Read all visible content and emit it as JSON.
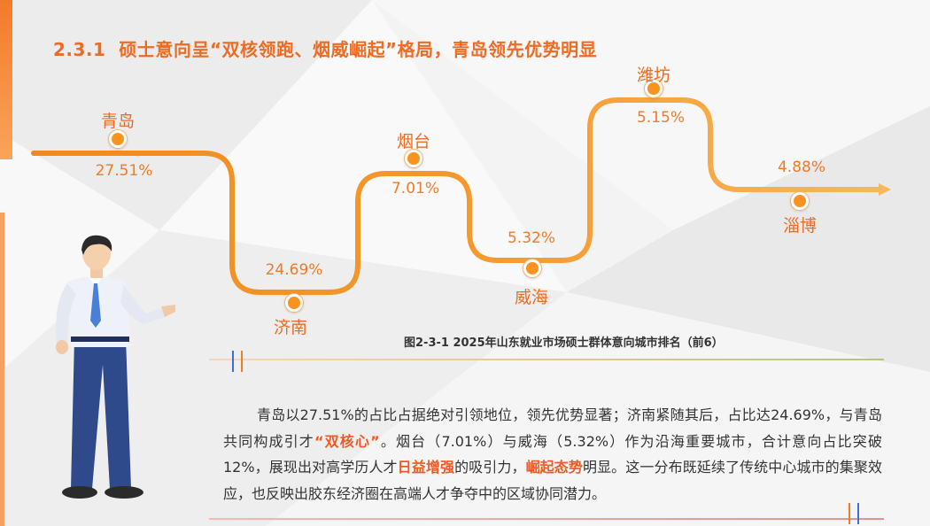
{
  "heading": {
    "number": "2.3.1",
    "text": "硕士意向呈“双核领跑、烟威崛起”格局，青岛领先优势明显"
  },
  "chart_data": {
    "type": "line",
    "categories": [
      "青岛",
      "济南",
      "烟台",
      "威海",
      "潍坊",
      "淄博"
    ],
    "values": [
      27.51,
      24.69,
      7.01,
      5.32,
      5.15,
      4.88
    ],
    "value_labels": [
      "27.51%",
      "24.69%",
      "7.01%",
      "5.32%",
      "5.15%",
      "4.88%"
    ],
    "unit": "%",
    "title": "图2-3-1  2025年山东就业市场硕士群体意向城市排名（前6）",
    "xlabel": "",
    "ylabel": "",
    "grid": false,
    "legend": "none"
  },
  "paragraph": {
    "part1": "青岛以27.51%的占比占据绝对引领地位，领先优势显著；济南紧随其后，占比达24.69%，与青岛共同构成引才",
    "hl1": "“双核心”",
    "part2": "。烟台（7.01%）与威海（5.32%）作为沿海重要城市，合计意向占比突破12%，展现出对高学历人才",
    "hl2": "日益增强",
    "part3": "的吸引力，",
    "hl3": "崛起态势",
    "part4": "明显。这一分布既延续了传统中心城市的集聚效应，也反映出胶东经济圈在高端人才争夺中的区域协同潜力。"
  },
  "colors": {
    "accent": "#ef6b22",
    "path": "#f59a2e",
    "highlight": "#ef5a24",
    "tick_blue": "#3b6fd8",
    "tick_orange": "#f47a2a"
  }
}
